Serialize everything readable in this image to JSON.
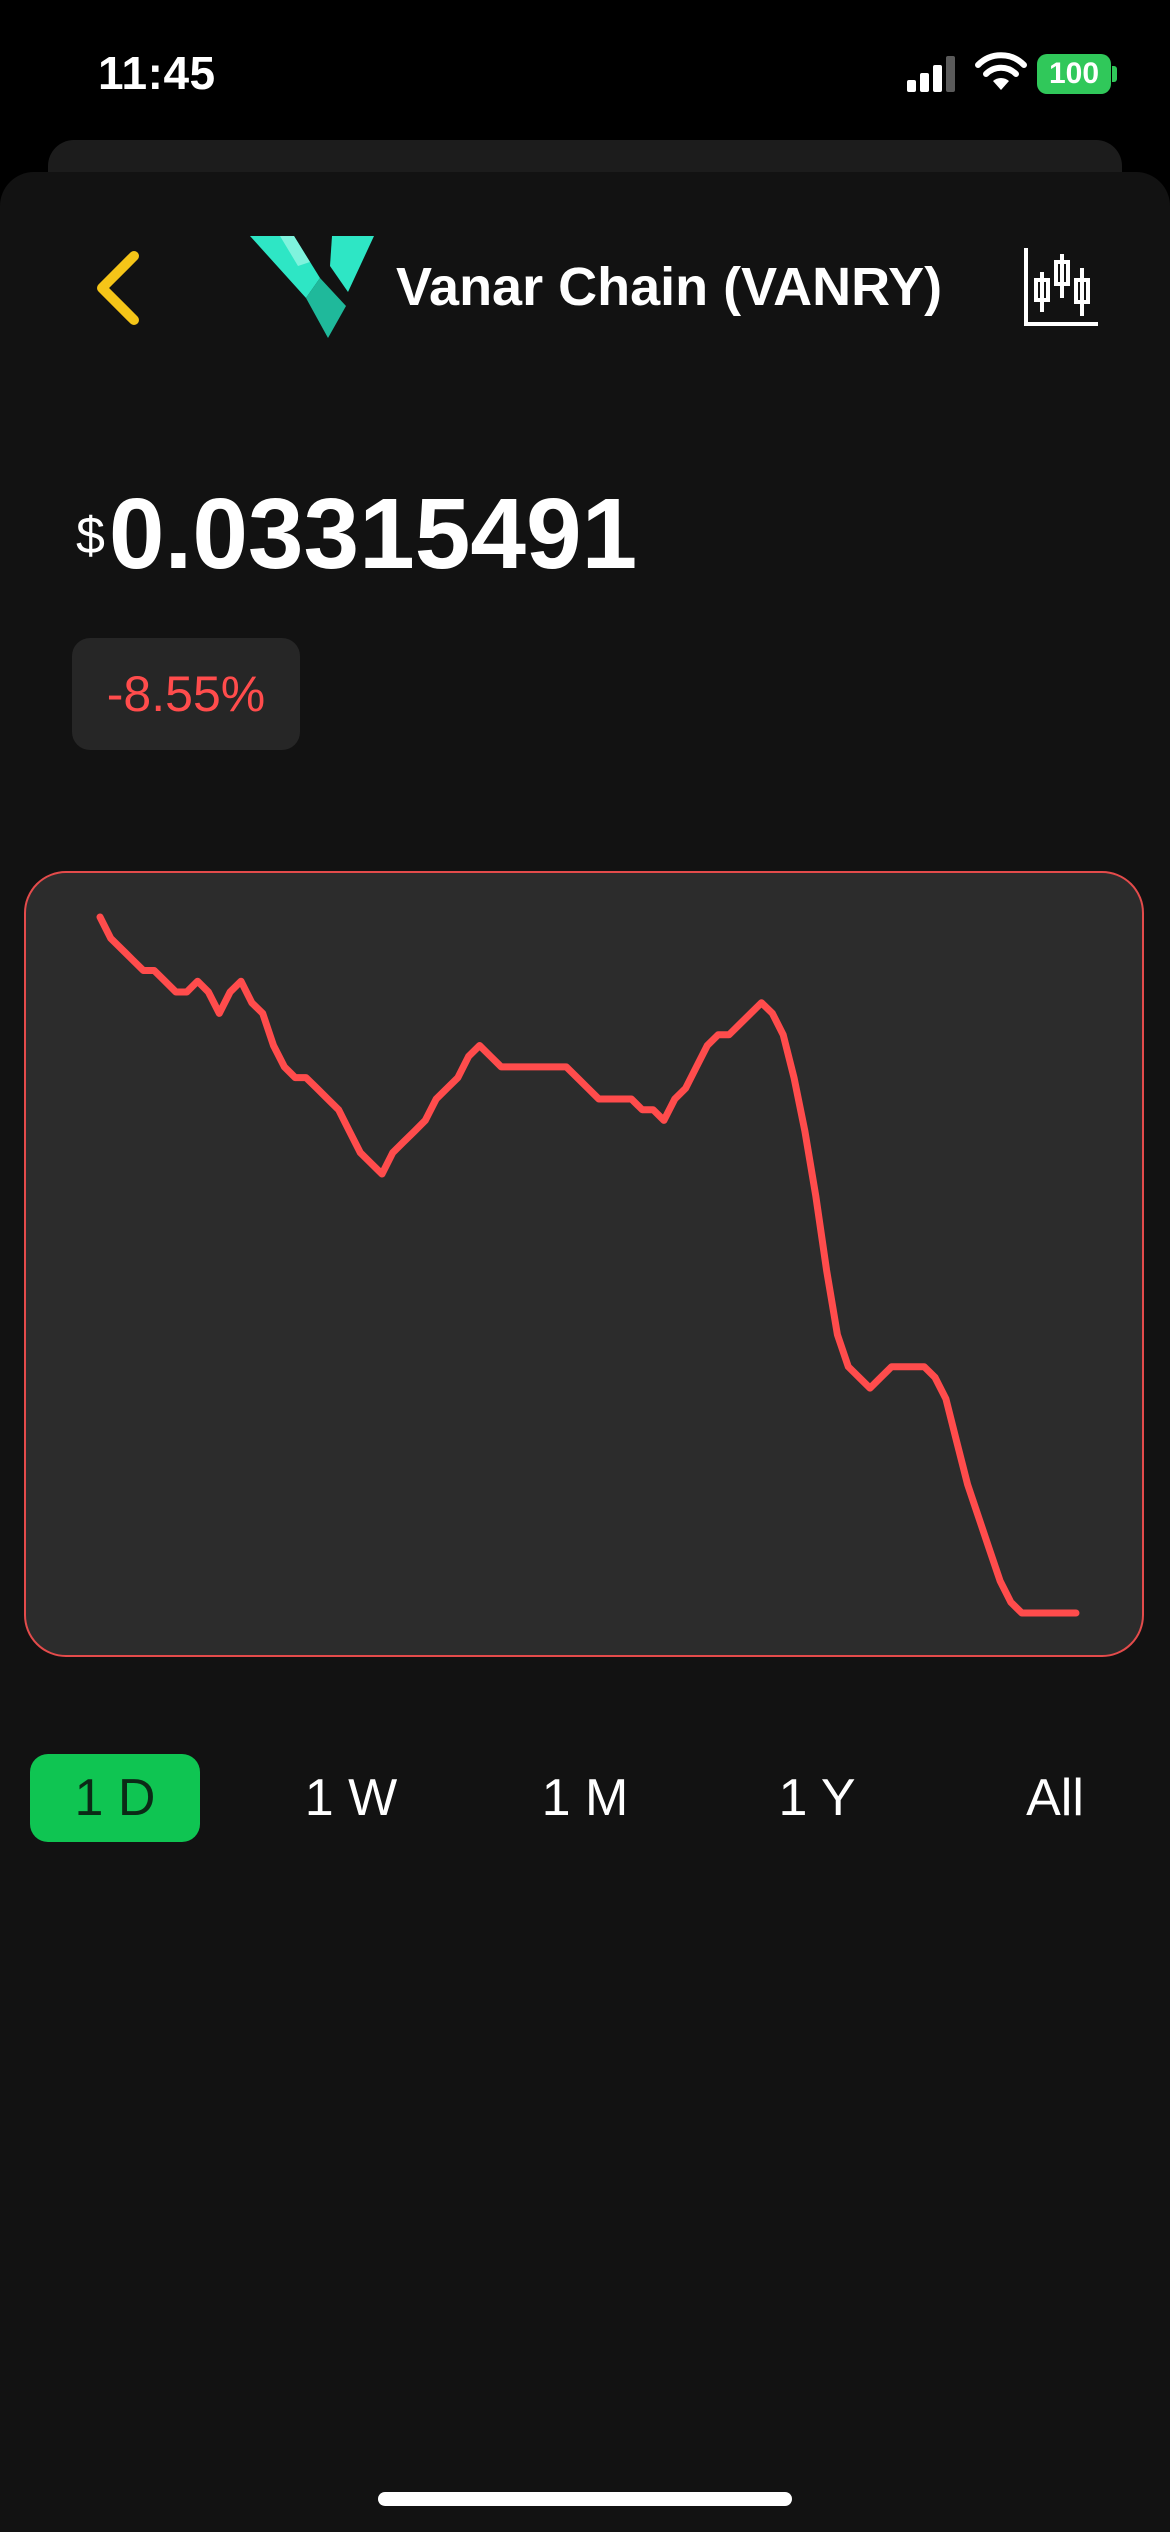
{
  "status_bar": {
    "time": "11:45",
    "battery_level": "100",
    "signal_bars": 3,
    "colors": {
      "battery": "#30c85a"
    }
  },
  "header": {
    "back_icon": "chevron-left-icon",
    "logo_icon": "vanar-logo-icon",
    "title": "Vanar Chain (VANRY)",
    "chart_toggle_icon": "candlestick-chart-icon",
    "colors": {
      "back": "#f5c518",
      "logo": "#2ee6c5"
    }
  },
  "price": {
    "currency_symbol": "$",
    "value": "0.03315491",
    "change": "-8.55%",
    "change_color": "#ff4c4c"
  },
  "chart_data": {
    "type": "line",
    "series": [
      {
        "values": [
          1.0,
          0.98,
          0.97,
          0.96,
          0.95,
          0.95,
          0.94,
          0.93,
          0.93,
          0.94,
          0.93,
          0.91,
          0.93,
          0.94,
          0.92,
          0.91,
          0.88,
          0.86,
          0.85,
          0.85,
          0.84,
          0.83,
          0.82,
          0.8,
          0.78,
          0.77,
          0.76,
          0.78,
          0.79,
          0.8,
          0.81,
          0.83,
          0.84,
          0.85,
          0.87,
          0.88,
          0.87,
          0.86,
          0.86,
          0.86,
          0.86,
          0.86,
          0.86,
          0.86,
          0.85,
          0.84,
          0.83,
          0.83,
          0.83,
          0.83,
          0.82,
          0.82,
          0.81,
          0.83,
          0.84,
          0.86,
          0.88,
          0.89,
          0.89,
          0.9,
          0.91,
          0.92,
          0.91,
          0.89,
          0.85,
          0.8,
          0.74,
          0.67,
          0.61,
          0.58,
          0.57,
          0.56,
          0.57,
          0.58,
          0.58,
          0.58,
          0.58,
          0.57,
          0.55,
          0.51,
          0.47,
          0.44,
          0.41,
          0.38,
          0.36,
          0.35,
          0.35,
          0.35,
          0.35,
          0.35,
          0.35
        ]
      }
    ],
    "line_color": "#ff4c4c",
    "background": "#2c2c2c",
    "border_color": "#e44b4b",
    "axes_visible": false,
    "grid": false
  },
  "range_tabs": {
    "items": [
      "1 D",
      "1 W",
      "1 M",
      "1 Y",
      "All"
    ],
    "selected": "1 D",
    "colors": {
      "active_bg": "#0fc552",
      "active_text": "#0b2a16"
    }
  }
}
